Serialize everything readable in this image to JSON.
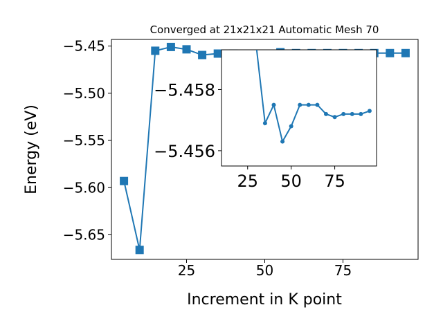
{
  "chart_data": [
    {
      "type": "line",
      "title": "Converged at 21x21x21 Automatic Mesh 70",
      "xlabel": "Increment in K point",
      "ylabel": "Energy (eV)",
      "xlim": [
        1,
        99
      ],
      "ylim": [
        -5.676,
        -5.443
      ],
      "xticks": [
        25,
        50,
        75
      ],
      "yticks": [
        -5.65,
        -5.6,
        -5.55,
        -5.5,
        -5.45
      ],
      "ytick_labels": [
        "−5.65",
        "−5.60",
        "−5.55",
        "−5.50",
        "−5.45"
      ],
      "marker": "square",
      "color": "#1f77b4",
      "series": [
        {
          "x": [
            5,
            10,
            15,
            20,
            25,
            30,
            35,
            40,
            45,
            50,
            55,
            60,
            65,
            70,
            75,
            80,
            85,
            90,
            95
          ],
          "y": [
            -5.593,
            -5.666,
            -5.455,
            -5.451,
            -5.4535,
            -5.4595,
            -5.458,
            -5.458,
            -5.4585,
            -5.4585,
            -5.4565,
            -5.4575,
            -5.4575,
            -5.4575,
            -5.4575,
            -5.4575,
            -5.4575,
            -5.4575,
            -5.4575
          ]
        }
      ]
    },
    {
      "type": "line",
      "inset": true,
      "xlim": [
        10,
        99
      ],
      "ylim": [
        -5.4555,
        -5.4593
      ],
      "xticks": [
        25,
        50,
        75
      ],
      "yticks": [
        -5.456,
        -5.458
      ],
      "ytick_labels": [
        "−5.456",
        "−5.458"
      ],
      "marker": "circle",
      "color": "#1f77b4",
      "series": [
        {
          "x": [
            30,
            35,
            40,
            45,
            50,
            55,
            60,
            65,
            70,
            75,
            80,
            85,
            90,
            95
          ],
          "y": [
            -5.4594,
            -5.4569,
            -5.4575,
            -5.4563,
            -5.4568,
            -5.4575,
            -5.4575,
            -5.4575,
            -5.4572,
            -5.4571,
            -5.4572,
            -5.4572,
            -5.4572,
            -5.4573
          ]
        }
      ]
    }
  ]
}
